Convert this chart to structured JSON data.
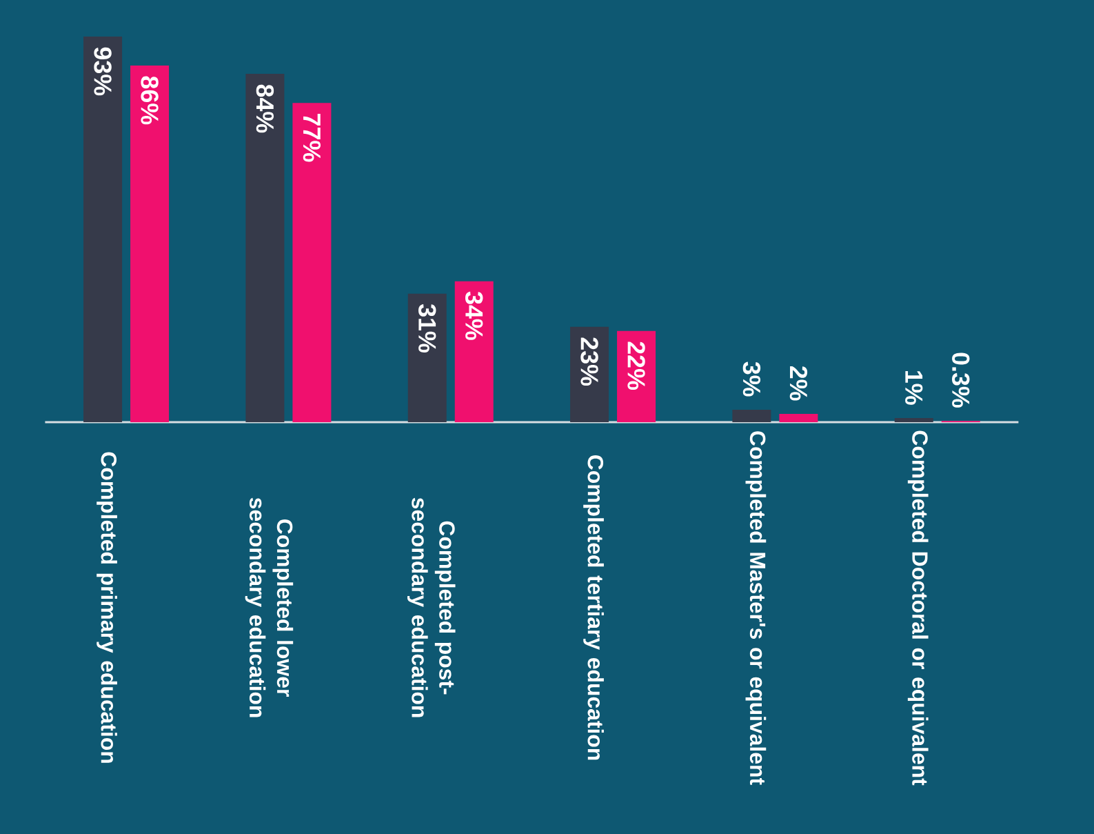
{
  "chart_data": {
    "type": "bar",
    "categories": [
      "Completed primary education",
      "Completed lower secondary education",
      "Completed post-secondary education",
      "Completed tertiary education",
      "Completed Master's or equivalent",
      "Completed Doctoral or equivalent"
    ],
    "series": [
      {
        "color": "#363a4a",
        "values": [
          93,
          84,
          31,
          23,
          3,
          1
        ],
        "value_labels": [
          "93%",
          "84%",
          "31%",
          "23%",
          "3%",
          "1%"
        ]
      },
      {
        "color": "#f0106e",
        "values": [
          86,
          77,
          34,
          22,
          2,
          0.3
        ],
        "value_labels": [
          "86%",
          "77%",
          "34%",
          "22%",
          "2%",
          "0.3%"
        ]
      }
    ]
  }
}
